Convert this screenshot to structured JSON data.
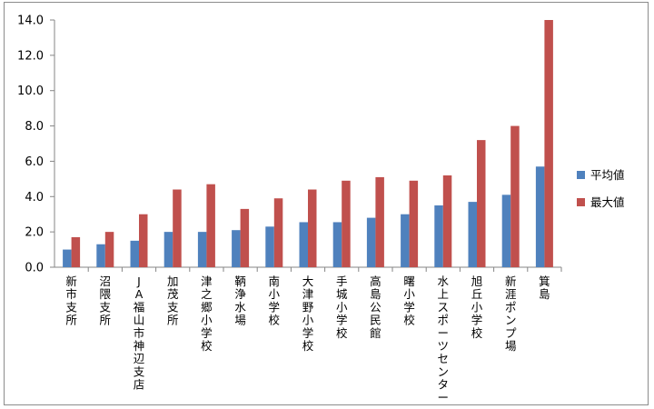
{
  "chart_data": {
    "type": "bar",
    "categories": [
      "新市支所",
      "沼隈支所",
      "JA福山市神辺支店",
      "加茂支所",
      "津之郷小学校",
      "鞆浄水場",
      "南小学校",
      "大津野小学校",
      "手城小学校",
      "高島公民館",
      "曙小学校",
      "水上スポーツセンター",
      "旭丘小学校",
      "新涯ポンプ場",
      "箕島"
    ],
    "series": [
      {
        "name": "平均値",
        "color": "#4f81bd",
        "values": [
          1.0,
          1.3,
          1.5,
          2.0,
          2.0,
          2.1,
          2.3,
          2.55,
          2.55,
          2.8,
          3.0,
          3.5,
          3.7,
          4.1,
          5.7
        ]
      },
      {
        "name": "最大値",
        "color": "#c0504d",
        "values": [
          1.7,
          2.0,
          3.0,
          4.4,
          4.7,
          3.3,
          3.9,
          4.4,
          4.9,
          5.1,
          4.9,
          5.2,
          7.2,
          8.0,
          14.0
        ]
      }
    ],
    "yticks": [
      "0.0",
      "2.0",
      "4.0",
      "6.0",
      "8.0",
      "10.0",
      "12.0",
      "14.0"
    ],
    "ylim": [
      0,
      14
    ],
    "grid": false,
    "legend": "right"
  }
}
